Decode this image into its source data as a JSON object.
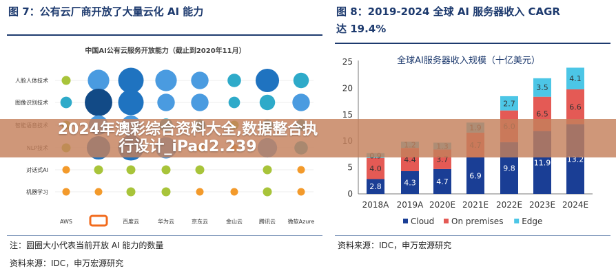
{
  "left": {
    "heading": "图 7：公有云厂商开放了大量云化 AI 能力",
    "note": "注：圆圈大小代表当前开放 AI 能力的数量",
    "source": "资料来源：IDC，申万宏源研究"
  },
  "right": {
    "heading_line1": "图 8：2019-2024 全球 AI 服务器收入 CAGR",
    "heading_line2": "达 19.4%",
    "source": "资料来源：IDC，申万宏源研究"
  },
  "banner": {
    "text": "2024年澳彩综合资料大全,数据整合执行设计_iPad2.239"
  },
  "chart_data": [
    {
      "type": "scatter",
      "title": "中国AI公有云服务开放能力（截止到2020年11月）",
      "rows": [
        "人脸人体技术",
        "图像识别技术",
        "智能语音技术",
        "NLP技术",
        "对话式AI",
        "机器学习"
      ],
      "columns": [
        "AWS",
        "阿里云",
        "百度云",
        "华为云",
        "京东云",
        "金山云",
        "腾讯云",
        "微软Azure"
      ],
      "sizes": [
        [
          2,
          8,
          10,
          8,
          6,
          4,
          9,
          5
        ],
        [
          3,
          11,
          10,
          6,
          6,
          3,
          5,
          6
        ],
        [
          2,
          7,
          7,
          4,
          3,
          2,
          3,
          3
        ],
        [
          2,
          9,
          10,
          8,
          1,
          1,
          7,
          4
        ],
        [
          1,
          2,
          2,
          2,
          2,
          0,
          2,
          1
        ],
        [
          1,
          1,
          2,
          2,
          1,
          1,
          2,
          1
        ]
      ],
      "colors": {
        "1": "#f39a2b",
        "2": "#a8c43a",
        "3": "#2eaac9",
        "small": "#2eaac9",
        "medium": "#4a9be0",
        "large": "#1f73c0",
        "largest": "#124a86"
      }
    },
    {
      "type": "bar",
      "stacked": true,
      "title": "全球AI服务器收入规模（十亿美元）",
      "categories": [
        "2018A",
        "2019A",
        "2020E",
        "2021E",
        "2022E",
        "2023E",
        "2024E"
      ],
      "series": [
        {
          "name": "Cloud",
          "color": "#1a3e95",
          "values": [
            2.8,
            4.3,
            4.7,
            6.9,
            9.8,
            11.9,
            13.2
          ]
        },
        {
          "name": "On premises",
          "color": "#e45a55",
          "values": [
            4.0,
            4.4,
            3.7,
            4.7,
            6.0,
            6.5,
            6.6
          ]
        },
        {
          "name": "Edge",
          "color": "#4cc6e6",
          "values": [
            0.9,
            1.2,
            1.3,
            1.9,
            2.7,
            3.5,
            4.1
          ]
        }
      ],
      "yticks": [
        0,
        5,
        10,
        15,
        20,
        25
      ],
      "ylim": [
        0,
        25
      ],
      "legend": "bottom"
    }
  ]
}
